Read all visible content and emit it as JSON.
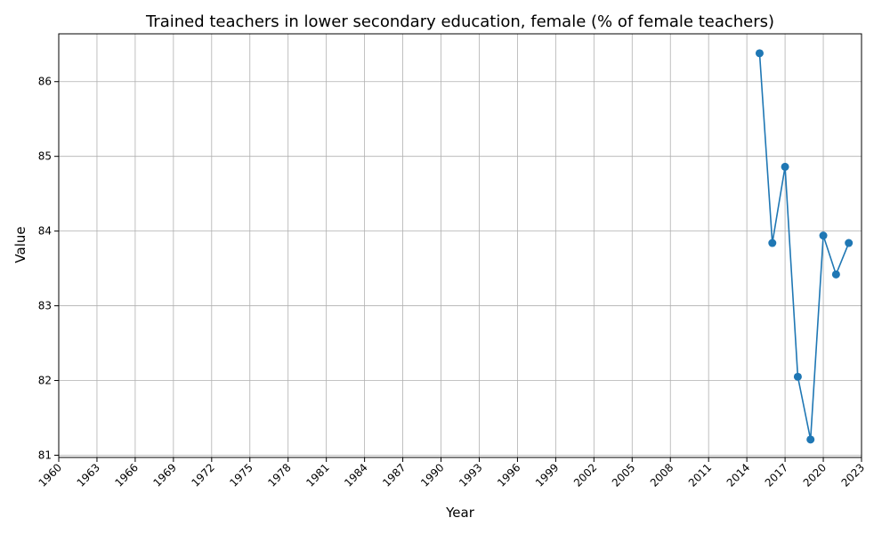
{
  "chart_data": {
    "type": "line",
    "title": "Trained teachers in lower secondary education, female (% of female teachers)",
    "xlabel": "Year",
    "ylabel": "Value",
    "xlim": [
      1960,
      2023
    ],
    "ylim": [
      80.97,
      86.64
    ],
    "x_ticks": [
      1960,
      1963,
      1966,
      1969,
      1972,
      1975,
      1978,
      1981,
      1984,
      1987,
      1990,
      1993,
      1996,
      1999,
      2002,
      2005,
      2008,
      2011,
      2014,
      2017,
      2020,
      2023
    ],
    "y_ticks": [
      81,
      82,
      83,
      84,
      85,
      86
    ],
    "grid": true,
    "color": "#1f77b4",
    "marker": "circle",
    "series": [
      {
        "x": [
          2015,
          2016,
          2017,
          2018,
          2019,
          2020,
          2021,
          2022
        ],
        "y": [
          86.38,
          83.84,
          84.86,
          82.05,
          81.21,
          83.94,
          83.42,
          83.84
        ]
      }
    ]
  }
}
